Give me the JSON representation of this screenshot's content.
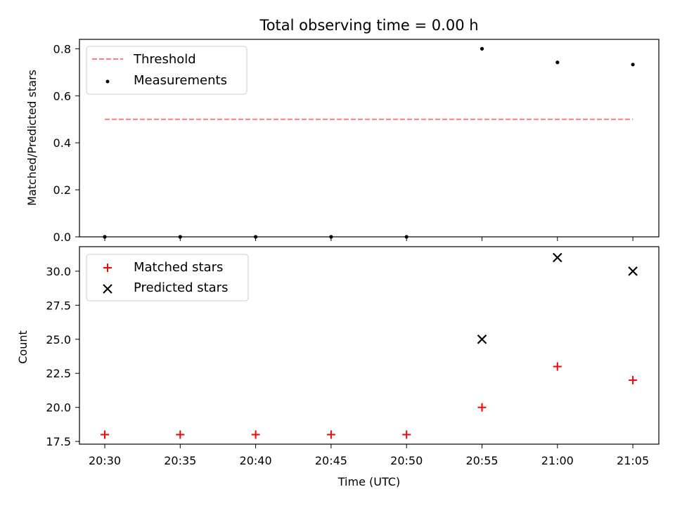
{
  "chart_data": [
    {
      "type": "scatter",
      "title": "Total observing time = 0.00 h",
      "ylabel": "Matched/Predicted stars",
      "ylim": [
        0,
        0.84
      ],
      "yticks": [
        0.0,
        0.2,
        0.4,
        0.6,
        0.8
      ],
      "ytick_labels": [
        "0.0",
        "0.2",
        "0.4",
        "0.6",
        "0.8"
      ],
      "legend_position": "upper-left",
      "series": [
        {
          "name": "Threshold",
          "kind": "dashed-line",
          "color": "#ff7f7f",
          "x": [
            "20:30",
            "21:05"
          ],
          "y": [
            0.5,
            0.5
          ]
        },
        {
          "name": "Measurements",
          "kind": "dot",
          "color": "#000000",
          "x": [
            "20:30",
            "20:35",
            "20:40",
            "20:45",
            "20:50",
            "20:55",
            "21:00",
            "21:05"
          ],
          "y": [
            0.0,
            0.0,
            0.0,
            0.0,
            0.0,
            0.8,
            0.742,
            0.733
          ]
        }
      ]
    },
    {
      "type": "scatter",
      "xlabel": "Time (UTC)",
      "ylabel": "Count",
      "ylim": [
        17.3,
        31.8
      ],
      "yticks": [
        17.5,
        20.0,
        22.5,
        25.0,
        27.5,
        30.0
      ],
      "ytick_labels": [
        "17.5",
        "20.0",
        "22.5",
        "25.0",
        "27.5",
        "30.0"
      ],
      "xticks": [
        "20:30",
        "20:35",
        "20:40",
        "20:45",
        "20:50",
        "20:55",
        "21:00",
        "21:05"
      ],
      "legend_position": "upper-left",
      "series": [
        {
          "name": "Matched stars",
          "kind": "plus",
          "color": "#ff0000",
          "x": [
            "20:30",
            "20:35",
            "20:40",
            "20:45",
            "20:50",
            "20:55",
            "21:00",
            "21:05"
          ],
          "y": [
            18,
            18,
            18,
            18,
            18,
            20,
            23,
            22
          ]
        },
        {
          "name": "Predicted stars",
          "kind": "cross",
          "color": "#000000",
          "x": [
            "20:55",
            "21:00",
            "21:05"
          ],
          "y": [
            25,
            31,
            30
          ]
        }
      ]
    }
  ]
}
